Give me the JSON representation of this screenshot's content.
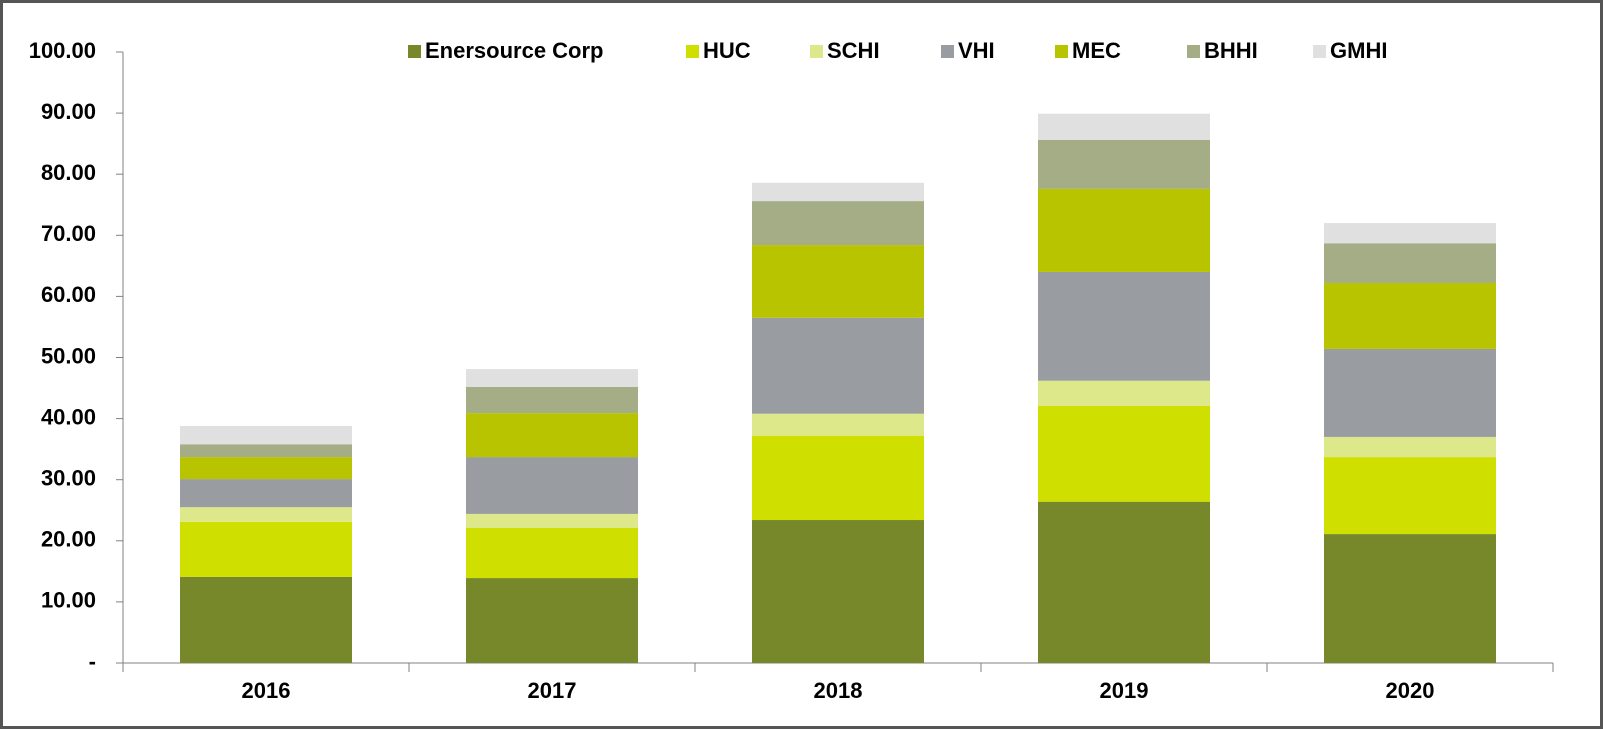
{
  "chart_data": {
    "type": "stacked_bar",
    "categories": [
      "2016",
      "2017",
      "2018",
      "2019",
      "2020"
    ],
    "series": [
      {
        "name": "Enersource Corp",
        "color": "#77882a",
        "values": [
          14.1,
          13.9,
          23.4,
          26.4,
          21.1
        ]
      },
      {
        "name": "HUC",
        "color": "#cfdf00",
        "values": [
          9.0,
          8.2,
          13.8,
          15.7,
          12.6
        ]
      },
      {
        "name": "SCHI",
        "color": "#dde88a",
        "values": [
          2.4,
          2.3,
          3.6,
          4.1,
          3.3
        ]
      },
      {
        "name": "VHI",
        "color": "#999ca0",
        "values": [
          4.6,
          9.3,
          15.7,
          17.8,
          14.4
        ]
      },
      {
        "name": "MEC",
        "color": "#b9c400",
        "values": [
          3.6,
          7.2,
          11.9,
          13.6,
          10.8
        ]
      },
      {
        "name": "BHHI",
        "color": "#a5ad87",
        "values": [
          2.1,
          4.3,
          7.2,
          8.0,
          6.5
        ]
      },
      {
        "name": "GMHI",
        "color": "#e0e0e0",
        "values": [
          3.0,
          2.9,
          3.0,
          4.3,
          3.3
        ]
      }
    ],
    "ylim": [
      0,
      100
    ],
    "yticks": [
      {
        "value": 0,
        "label": "-"
      },
      {
        "value": 10,
        "label": "10.00"
      },
      {
        "value": 20,
        "label": "20.00"
      },
      {
        "value": 30,
        "label": "30.00"
      },
      {
        "value": 40,
        "label": "40.00"
      },
      {
        "value": 50,
        "label": "50.00"
      },
      {
        "value": 60,
        "label": "60.00"
      },
      {
        "value": 70,
        "label": "70.00"
      },
      {
        "value": 80,
        "label": "80.00"
      },
      {
        "value": 90,
        "label": "90.00"
      },
      {
        "value": 100,
        "label": "100.00"
      }
    ],
    "legend": "top"
  }
}
